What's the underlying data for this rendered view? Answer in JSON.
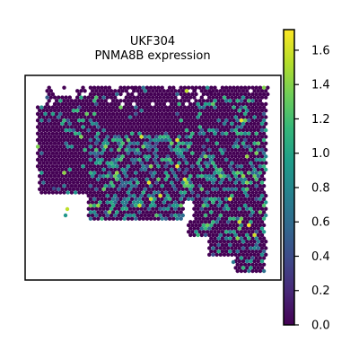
{
  "figure": {
    "title_line1": "UKF304",
    "title_line2": "PNMA8B expression"
  },
  "chart_data": {
    "type": "scatter",
    "subtype": "spatial-hexbin",
    "title": "UKF304\nPNMA8B expression",
    "xlabel": "",
    "ylabel": "",
    "grid": false,
    "legend": "none",
    "colormap": "viridis",
    "colorbar": {
      "min": 0.0,
      "max": 1.72,
      "ticks": [
        0.0,
        0.2,
        0.4,
        0.6,
        0.8,
        1.0,
        1.2,
        1.4,
        1.6
      ],
      "tick_labels": [
        "0.0",
        "0.2",
        "0.4",
        "0.6",
        "0.8",
        "1.0",
        "1.2",
        "1.4",
        "1.6"
      ],
      "colors": [
        "#440154",
        "#482878",
        "#3e4989",
        "#31688e",
        "#26828e",
        "#1f9e89",
        "#35b779",
        "#6ece58",
        "#b5de2b",
        "#fde725"
      ]
    },
    "spot_count_estimate": 2400,
    "value_distribution": "mostly 0.0 (dark purple); sparse 0.5-1.2 spots concentrated in lower-middle and right regions; a few values near 1.6-1.7"
  }
}
